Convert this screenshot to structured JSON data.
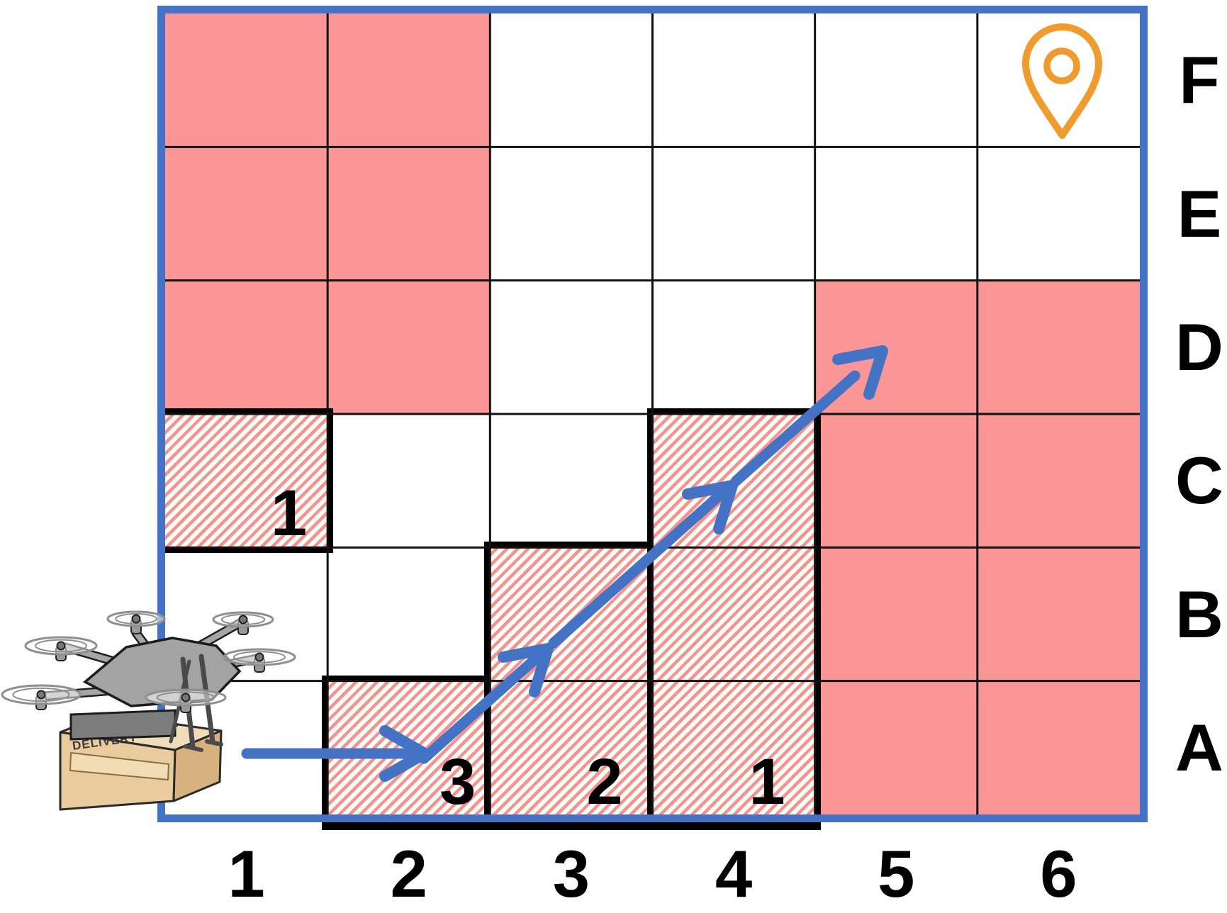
{
  "colors": {
    "frame_blue": "#4472C4",
    "arrow_blue": "#4472C4",
    "obstacle_pink": "#FB9696",
    "hatch_stripe": "#F5938B",
    "pin_orange": "#F09B2D",
    "grid_line_black": "#111111"
  },
  "grid": {
    "col_labels": [
      "1",
      "2",
      "3",
      "4",
      "5",
      "6"
    ],
    "row_labels_top_to_bottom": [
      "F",
      "E",
      "D",
      "C",
      "B",
      "A"
    ],
    "solid_obstacle_cells": [
      "F1",
      "F2",
      "E1",
      "E2",
      "D1",
      "D2",
      "D5",
      "D6",
      "C5",
      "C6",
      "B5",
      "B6",
      "A5",
      "A6"
    ],
    "hatched_zones": [
      {
        "id": "C1",
        "cells": [
          "C1"
        ],
        "label": "1"
      },
      {
        "id": "A2",
        "cells": [
          "A2"
        ],
        "label": "3"
      },
      {
        "id": "B3",
        "cells": [
          "B3",
          "A3"
        ],
        "label": "2"
      },
      {
        "id": "C4",
        "cells": [
          "C4",
          "B4",
          "A4"
        ],
        "label": "1"
      }
    ]
  },
  "route": {
    "start_cell": "A1",
    "end_cell": "D5",
    "waypoint_cells": [
      "A1",
      "A2",
      "B3",
      "C4",
      "D5"
    ]
  },
  "markers": {
    "destination_pin_cell": "F6",
    "drone_label": "DELIVERY"
  }
}
